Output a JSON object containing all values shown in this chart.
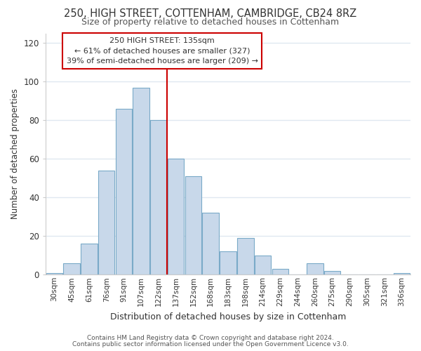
{
  "title1": "250, HIGH STREET, COTTENHAM, CAMBRIDGE, CB24 8RZ",
  "title2": "Size of property relative to detached houses in Cottenham",
  "xlabel": "Distribution of detached houses by size in Cottenham",
  "ylabel": "Number of detached properties",
  "bar_color": "#c8d8ea",
  "bar_edge_color": "#7aaac8",
  "categories": [
    "30sqm",
    "45sqm",
    "61sqm",
    "76sqm",
    "91sqm",
    "107sqm",
    "122sqm",
    "137sqm",
    "152sqm",
    "168sqm",
    "183sqm",
    "198sqm",
    "214sqm",
    "229sqm",
    "244sqm",
    "260sqm",
    "275sqm",
    "290sqm",
    "305sqm",
    "321sqm",
    "336sqm"
  ],
  "values": [
    1,
    6,
    16,
    54,
    86,
    97,
    80,
    60,
    51,
    32,
    12,
    19,
    10,
    3,
    0,
    6,
    2,
    0,
    0,
    0,
    1
  ],
  "vline_color": "#cc0000",
  "ylim": [
    0,
    125
  ],
  "yticks": [
    0,
    20,
    40,
    60,
    80,
    100,
    120
  ],
  "annotation_title": "250 HIGH STREET: 135sqm",
  "annotation_line1": "← 61% of detached houses are smaller (327)",
  "annotation_line2": "39% of semi-detached houses are larger (209) →",
  "footer1": "Contains HM Land Registry data © Crown copyright and database right 2024.",
  "footer2": "Contains public sector information licensed under the Open Government Licence v3.0.",
  "bg_color": "#ffffff",
  "grid_color": "#e0e8f0"
}
